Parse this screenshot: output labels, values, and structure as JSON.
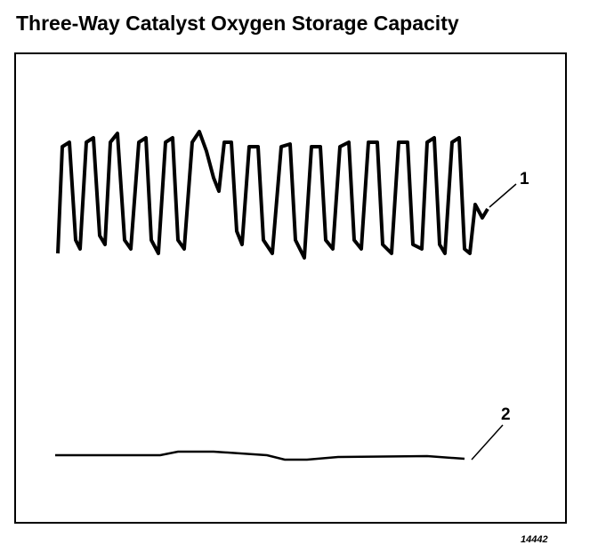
{
  "title": "Three-Way Catalyst Oxygen Storage Capacity",
  "callouts": [
    "1",
    "2"
  ],
  "figure_id": "14442"
}
